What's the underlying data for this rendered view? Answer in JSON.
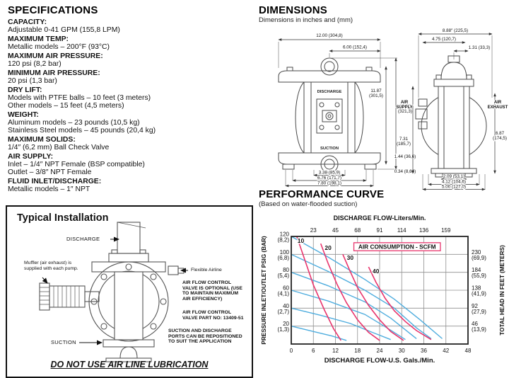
{
  "specifications": {
    "title": "SPECIFICATIONS",
    "items": [
      {
        "label": "CAPACITY:",
        "lines": [
          "Adjustable 0-41 GPM (155,8 LPM)"
        ]
      },
      {
        "label": "MAXIMUM TEMP:",
        "lines": [
          "Metallic models – 200°F (93°C)"
        ]
      },
      {
        "label": "MAXIMUM AIR PRESSURE:",
        "lines": [
          "120 psi (8,2 bar)"
        ]
      },
      {
        "label": "MINIMUM AIR PRESSURE:",
        "lines": [
          "20 psi (1,3 bar)"
        ]
      },
      {
        "label": "DRY LIFT:",
        "lines": [
          "Models with PTFE balls – 10 feet (3 meters)",
          "Other models – 15 feet (4,5 meters)"
        ]
      },
      {
        "label": "WEIGHT:",
        "lines": [
          "Aluminum models – 23 pounds (10,5 kg)",
          "Stainless Steel models – 45 pounds (20,4 kg)"
        ]
      },
      {
        "label": "MAXIMUM SOLIDS:",
        "lines": [
          "1/4″ (6,2 mm) Ball Check Valve"
        ]
      },
      {
        "label": "AIR SUPPLY:",
        "lines": [
          "Inlet – 1/4″ NPT Female (BSP compatible)",
          "Outlet – 3/8″ NPT Female"
        ]
      },
      {
        "label": "FLUID INLET/DISCHARGE:",
        "lines": [
          "Metallic models – 1″ NPT"
        ]
      }
    ]
  },
  "dimensions": {
    "title": "DIMENSIONS",
    "subtitle": "Dimensions in inches and (mm)",
    "front_view": {
      "discharge_label": "DISCHARGE",
      "suction_label": "SUCTION",
      "dims": {
        "overall_width": "12.00 (304,8)",
        "port_offset": "6.00 (152,4)",
        "overall_height": "12.65 (321,3)",
        "port_height": "11.87 (301,5)",
        "base_height": "1.44 (36,6)",
        "foot_clearance": "0.34 (8,64)",
        "bolt_span_inner": "3.38 (85,9)",
        "bolt_span_outer": "6.76 (171,7)",
        "base_width": "7.80 (198,1)"
      }
    },
    "side_view": {
      "air_supply_label": "AIR SUPPLY",
      "air_exhaust_label": "AIR EXHAUST",
      "dims": {
        "overall_depth": "8.88″ (225,5)",
        "body_depth": "4.75 (120,7)",
        "port_offset": "1.31 (33,3)",
        "supply_height": "7.31 (185,7)",
        "exhaust_height": "6.87 (174,5)",
        "foot_span_inner": "2.09 (53,1)",
        "foot_span_outer": "4.12 (104,6)",
        "base_depth": "5.00 (127,0)"
      }
    }
  },
  "installation": {
    "title": "Typical Installation",
    "discharge_label": "DISCHARGE",
    "muffler_note": "Muffler (air exhaust) is supplied with each pump.",
    "flexible_airline_label": "Flexible Airline",
    "air_valve_note": "AIR FLOW CONTROL VALVE IS OPTIONAL (USE TO MAINTAIN MAXIMUM AIR EFFICIENCY)",
    "air_valve_part_note": "AIR FLOW CONTROL VALVE PART NO: 13409-51",
    "ports_note": "SUCTION AND DISCHARGE PORTS CAN BE REPOSITIONED TO SUIT THE APPLICATION",
    "suction_label": "SUCTION",
    "warning": "DO NOT USE AIR LINE LUBRICATION"
  },
  "performance": {
    "title": "PERFORMANCE CURVE",
    "subtitle": "(Based on water-flooded suction)"
  },
  "chart_data": {
    "type": "line",
    "title": "PERFORMANCE CURVE",
    "top_axis": {
      "label": "DISCHARGE FLOW-Liters/Min.",
      "ticks": [
        "23",
        "45",
        "68",
        "91",
        "114",
        "136",
        "159"
      ],
      "tick_x": [
        6,
        12,
        18,
        24,
        30,
        36,
        42
      ]
    },
    "bottom_axis": {
      "label": "DISCHARGE FLOW-U.S. Gals./Min.",
      "ticks": [
        "0",
        "6",
        "12",
        "18",
        "24",
        "30",
        "36",
        "42",
        "48"
      ],
      "tick_x": [
        0,
        6,
        12,
        18,
        24,
        30,
        36,
        42,
        48
      ]
    },
    "left_axis": {
      "label": "PRESSURE INLET/OUTLET PSIG (BAR)",
      "ticks": [
        {
          "main": "120",
          "sub": "(8,2)",
          "y": 120
        },
        {
          "main": "100",
          "sub": "(6,8)",
          "y": 100
        },
        {
          "main": "80",
          "sub": "(5,4)",
          "y": 80
        },
        {
          "main": "60",
          "sub": "(4,1)",
          "y": 60
        },
        {
          "main": "40",
          "sub": "(2,7)",
          "y": 40
        },
        {
          "main": "20",
          "sub": "(1,3)",
          "y": 20
        }
      ]
    },
    "right_axis": {
      "label": "TOTAL HEAD IN FEET (METERS)",
      "ticks": [
        {
          "main": "230",
          "sub": "(69,9)",
          "y": 100
        },
        {
          "main": "184",
          "sub": "(55,9)",
          "y": 80
        },
        {
          "main": "138",
          "sub": "(41,9)",
          "y": 60
        },
        {
          "main": "92",
          "sub": "(27,9)",
          "y": 40
        },
        {
          "main": "46",
          "sub": "(13,9)",
          "y": 20
        }
      ]
    },
    "legend": {
      "label": "AIR CONSUMPTION - SCFM"
    },
    "xlim": [
      0,
      48
    ],
    "ylim": [
      0,
      120
    ],
    "grid": {
      "x_step": 6,
      "y_step": 20
    },
    "colors": {
      "water": "#4fadde",
      "air": "#e8356d"
    },
    "water_series": [
      {
        "points": [
          [
            0,
            120
          ],
          [
            10,
            97
          ],
          [
            20,
            72
          ],
          [
            28,
            50
          ],
          [
            35,
            27
          ],
          [
            41,
            6
          ]
        ]
      },
      {
        "points": [
          [
            0,
            100
          ],
          [
            10,
            81
          ],
          [
            20,
            60
          ],
          [
            28,
            40
          ],
          [
            34,
            18
          ],
          [
            38,
            6
          ]
        ]
      },
      {
        "points": [
          [
            0,
            80
          ],
          [
            10,
            65
          ],
          [
            20,
            47
          ],
          [
            27,
            29
          ],
          [
            34,
            6
          ]
        ]
      },
      {
        "points": [
          [
            0,
            60
          ],
          [
            10,
            48
          ],
          [
            20,
            33
          ],
          [
            26,
            18
          ],
          [
            31,
            5
          ]
        ]
      },
      {
        "points": [
          [
            0,
            40
          ],
          [
            8,
            32
          ],
          [
            16,
            23
          ],
          [
            22,
            13
          ],
          [
            27,
            5
          ]
        ]
      },
      {
        "points": [
          [
            0,
            20
          ],
          [
            6,
            14
          ],
          [
            11,
            9
          ],
          [
            15,
            4
          ]
        ]
      }
    ],
    "air_series": [
      {
        "label": "10",
        "points": [
          [
            1.5,
            120
          ],
          [
            4,
            90
          ],
          [
            6,
            66
          ],
          [
            9,
            38
          ],
          [
            11.5,
            17
          ],
          [
            13.5,
            4
          ]
        ],
        "label_at": [
          2.6,
          113
        ]
      },
      {
        "label": "20",
        "points": [
          [
            8,
            112
          ],
          [
            10,
            90
          ],
          [
            12.5,
            66
          ],
          [
            15,
            46
          ],
          [
            18,
            27
          ],
          [
            21,
            13
          ],
          [
            24,
            4
          ]
        ],
        "label_at": [
          10,
          105
        ]
      },
      {
        "label": "30",
        "points": [
          [
            14,
            100
          ],
          [
            16,
            81
          ],
          [
            18,
            63
          ],
          [
            21,
            43
          ],
          [
            24,
            27
          ],
          [
            27,
            14
          ],
          [
            30.5,
            4
          ]
        ],
        "label_at": [
          16,
          94
        ]
      },
      {
        "label": "40",
        "points": [
          [
            21,
            86
          ],
          [
            23,
            69
          ],
          [
            25.5,
            51
          ],
          [
            28,
            37
          ],
          [
            31,
            25
          ],
          [
            34,
            15
          ],
          [
            38,
            5
          ]
        ],
        "label_at": [
          23,
          79
        ]
      }
    ]
  }
}
